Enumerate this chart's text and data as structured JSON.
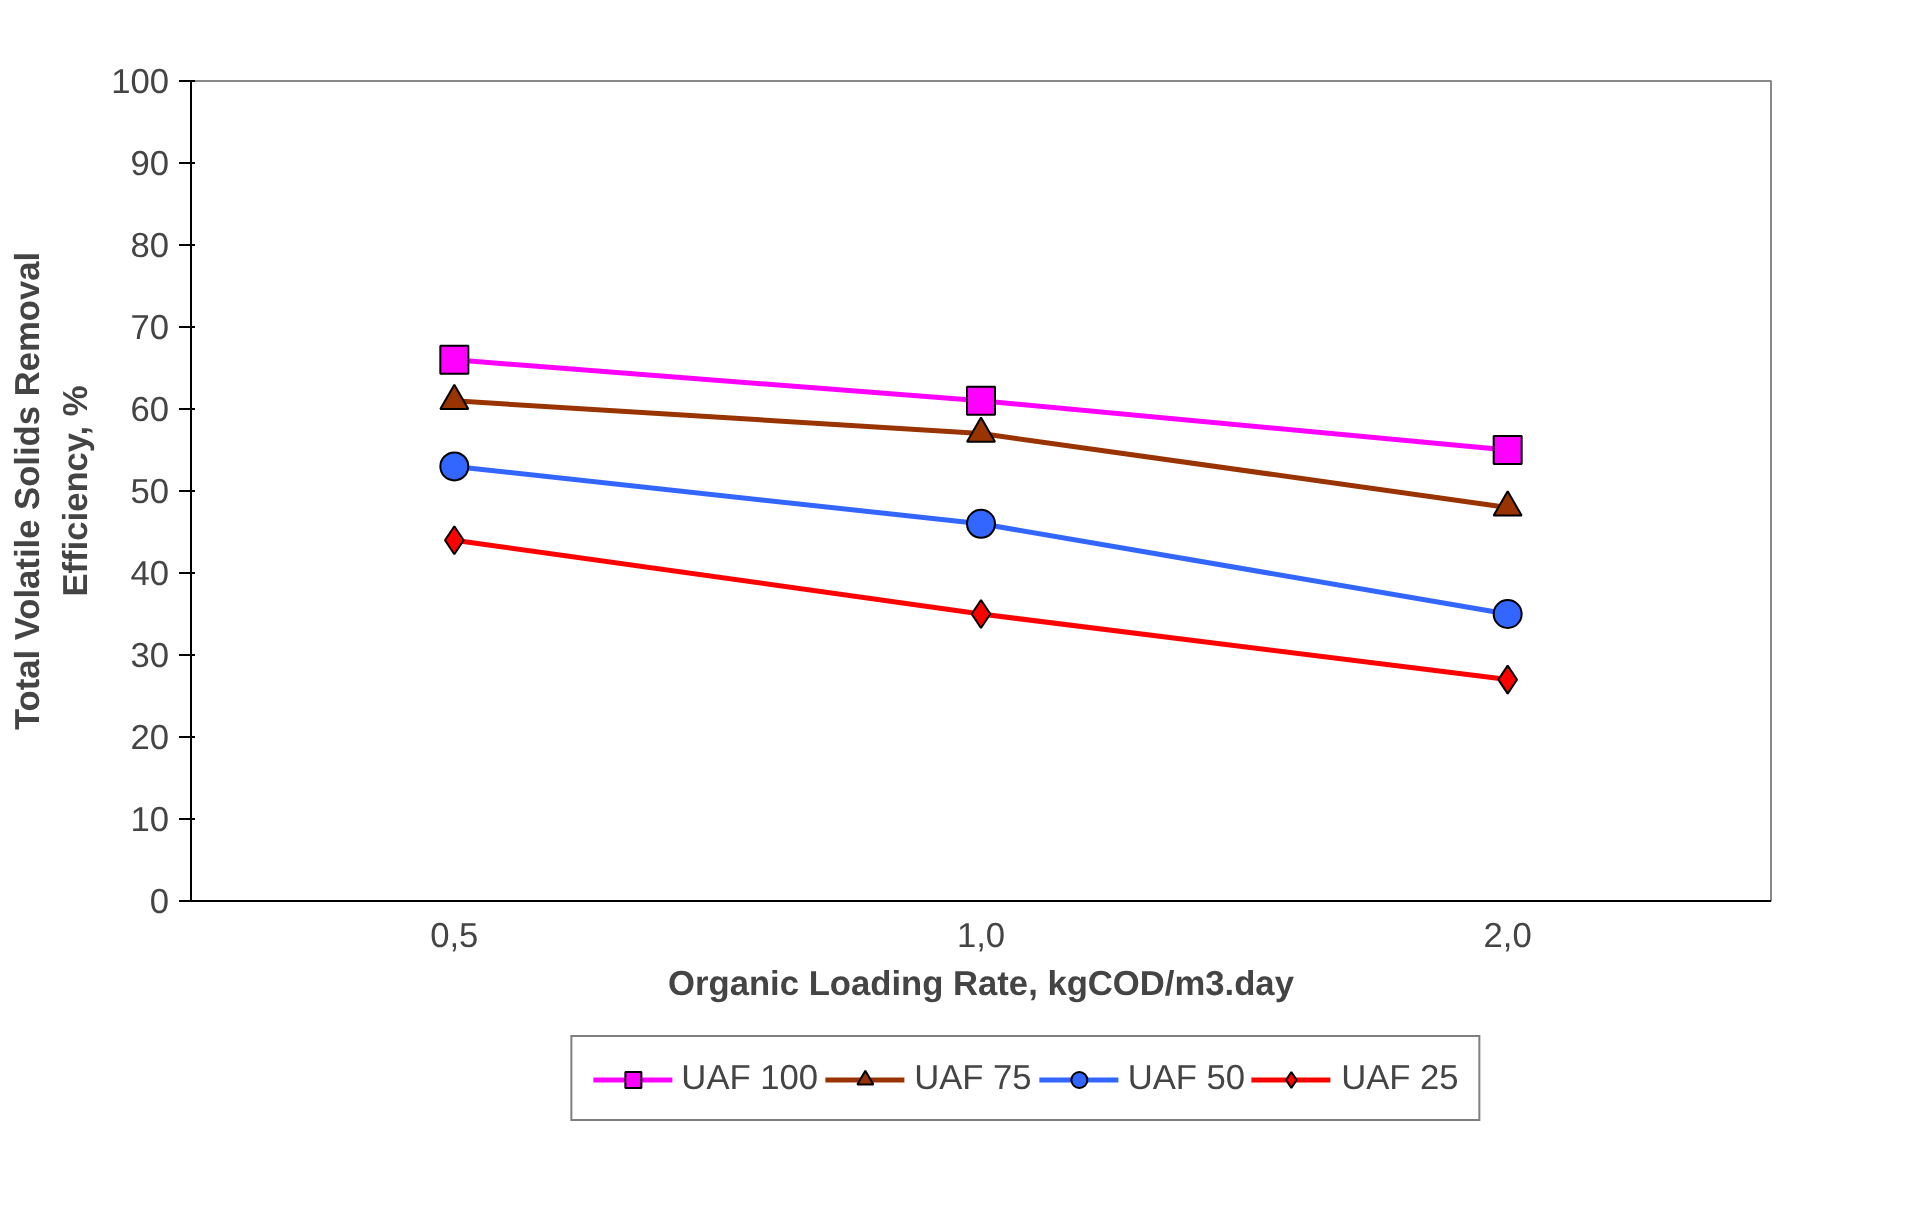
{
  "chart_data": {
    "type": "line",
    "xlabel": "Organic Loading Rate, kgCOD/m3.day",
    "ylabel": "Total Volatile Solids Removal\nEfficiency, %",
    "categories": [
      "0,5",
      "1,0",
      "2,0"
    ],
    "ylim": [
      0,
      100
    ],
    "yticks": [
      0,
      10,
      20,
      30,
      40,
      50,
      60,
      70,
      80,
      90,
      100
    ],
    "grid": false,
    "legend": "bottom",
    "line_style": "solid",
    "series": [
      {
        "name": "UAF 100",
        "color": "#ff00ff",
        "marker": "square",
        "values": [
          66,
          61,
          55
        ]
      },
      {
        "name": "UAF 75",
        "color": "#993300",
        "marker": "triangle",
        "values": [
          61,
          57,
          48
        ]
      },
      {
        "name": "UAF 50",
        "color": "#3366ff",
        "marker": "circle",
        "values": [
          53,
          46,
          35
        ]
      },
      {
        "name": "UAF 25",
        "color": "#ff0000",
        "marker": "diamond",
        "values": [
          44,
          35,
          27
        ]
      }
    ]
  }
}
